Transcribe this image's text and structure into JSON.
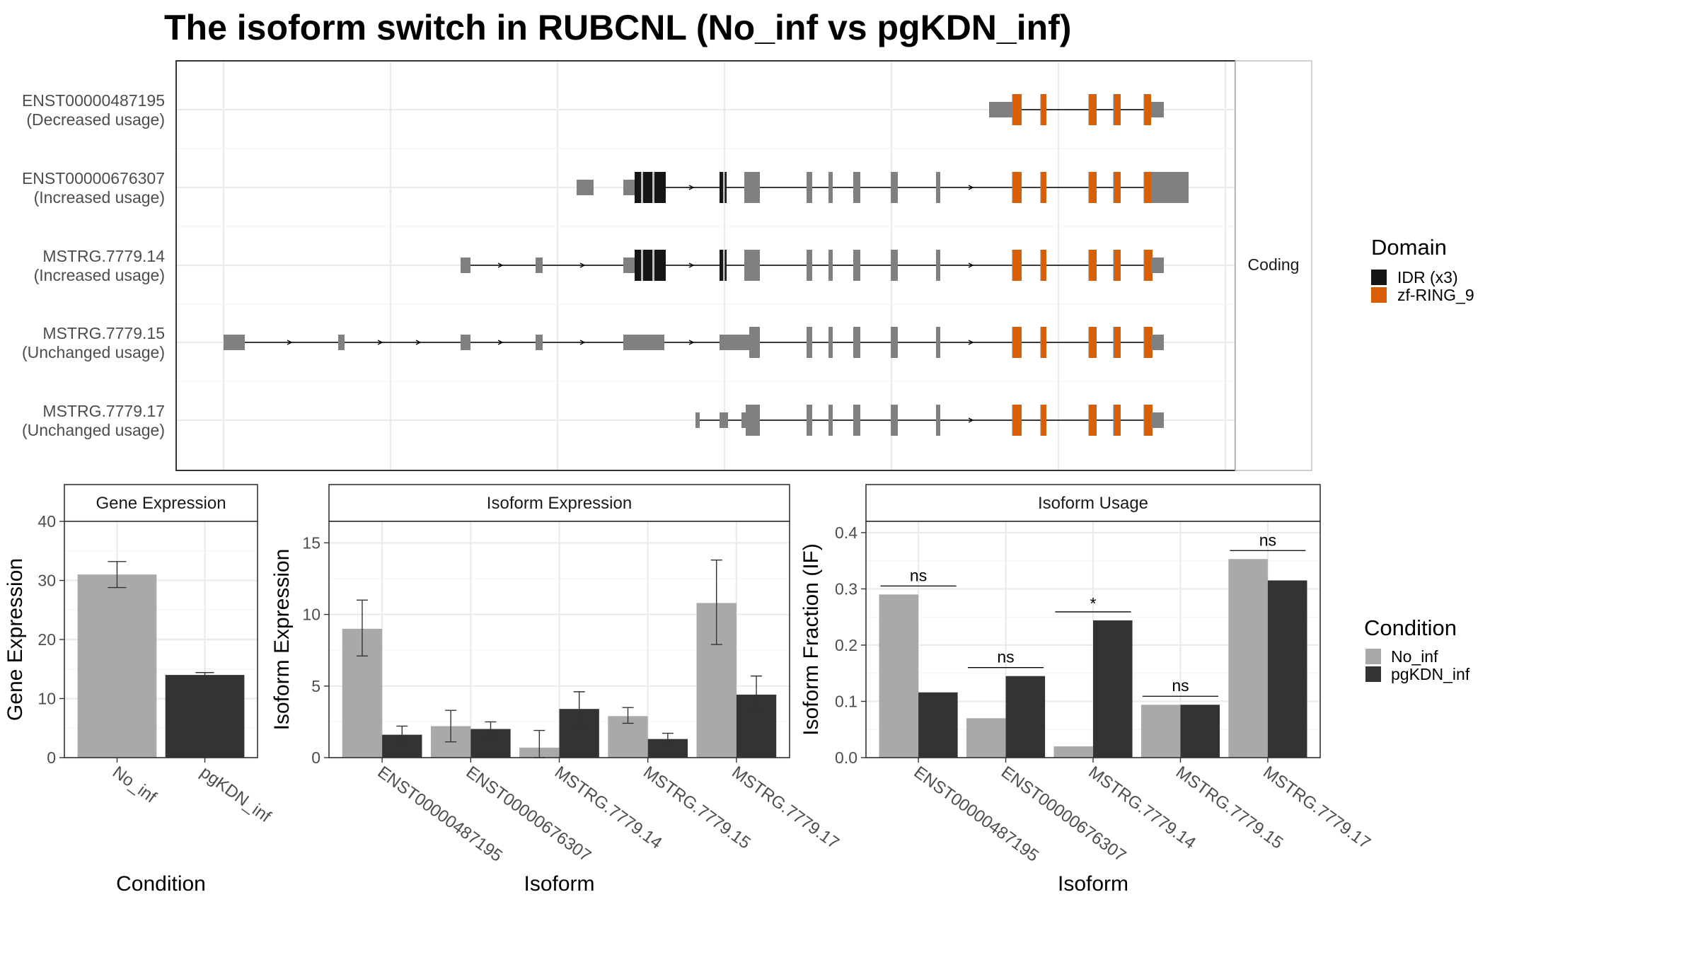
{
  "title": "The isoform switch in RUBCNL (No_inf vs pgKDN_inf)",
  "colors": {
    "no_inf": "#a9a9a9",
    "pgkdn_inf": "#333333",
    "idr": "#161616",
    "zf_ring": "#d95f02",
    "exon": "#808080",
    "strip_bg": "#ffffff",
    "grid": "#ebebeb"
  },
  "structure_panel": {
    "strip_label": "Coding",
    "isoforms": [
      {
        "id": "ENST00000487195",
        "usage": "(Decreased usage)"
      },
      {
        "id": "ENST00000676307",
        "usage": "(Increased usage)"
      },
      {
        "id": "MSTRG.7779.14",
        "usage": "(Increased usage)"
      },
      {
        "id": "MSTRG.7779.15",
        "usage": "(Unchanged usage)"
      },
      {
        "id": "MSTRG.7779.17",
        "usage": "(Unchanged usage)"
      }
    ]
  },
  "domain_legend": {
    "title": "Domain",
    "items": [
      {
        "label": "IDR (x3)",
        "color": "#161616"
      },
      {
        "label": "zf-RING_9",
        "color": "#d95f02"
      }
    ]
  },
  "condition_legend": {
    "title": "Condition",
    "items": [
      {
        "label": "No_inf",
        "color": "#a9a9a9"
      },
      {
        "label": "pgKDN_inf",
        "color": "#333333"
      }
    ]
  },
  "chart_data": [
    {
      "type": "bar",
      "panel": "Gene Expression",
      "categories": [
        "No_inf",
        "pgKDN_inf"
      ],
      "values": [
        31,
        14
      ],
      "errors": [
        [
          28.8,
          33.2
        ],
        [
          13.6,
          14.4
        ]
      ],
      "xlabel": "Condition",
      "ylabel": "Gene Expression",
      "ylim": [
        0,
        40
      ],
      "yticks": [
        0,
        10,
        20,
        30,
        40
      ]
    },
    {
      "type": "bar",
      "panel": "Isoform Expression",
      "categories": [
        "ENST00000487195",
        "ENST00000676307",
        "MSTRG.7779.14",
        "MSTRG.7779.15",
        "MSTRG.7779.17"
      ],
      "series": [
        {
          "name": "No_inf",
          "values": [
            9.0,
            2.2,
            0.7,
            2.9,
            10.8
          ],
          "errors": [
            [
              7.1,
              11.0
            ],
            [
              1.1,
              3.3
            ],
            [
              0.0,
              1.9
            ],
            [
              2.4,
              3.5
            ],
            [
              7.9,
              13.8
            ]
          ]
        },
        {
          "name": "pgKDN_inf",
          "values": [
            1.6,
            2.0,
            3.4,
            1.3,
            4.4
          ],
          "errors": [
            [
              1.1,
              2.2
            ],
            [
              1.5,
              2.5
            ],
            [
              2.2,
              4.6
            ],
            [
              0.9,
              1.7
            ],
            [
              3.2,
              5.7
            ]
          ]
        }
      ],
      "xlabel": "Isoform",
      "ylabel": "Isoform Expression",
      "ylim": [
        0,
        16.5
      ],
      "yticks": [
        0,
        5,
        10,
        15
      ]
    },
    {
      "type": "bar",
      "panel": "Isoform Usage",
      "categories": [
        "ENST00000487195",
        "ENST00000676307",
        "MSTRG.7779.14",
        "MSTRG.7779.15",
        "MSTRG.7779.17"
      ],
      "series": [
        {
          "name": "No_inf",
          "values": [
            0.29,
            0.07,
            0.02,
            0.094,
            0.353
          ]
        },
        {
          "name": "pgKDN_inf",
          "values": [
            0.116,
            0.145,
            0.244,
            0.094,
            0.315
          ]
        }
      ],
      "significance": [
        "ns",
        "ns",
        "*",
        "ns",
        "ns"
      ],
      "xlabel": "Isoform",
      "ylabel": "Isoform Fraction (IF)",
      "ylim": [
        0,
        0.42
      ],
      "yticks": [
        0.0,
        0.1,
        0.2,
        0.3,
        0.4
      ]
    }
  ]
}
